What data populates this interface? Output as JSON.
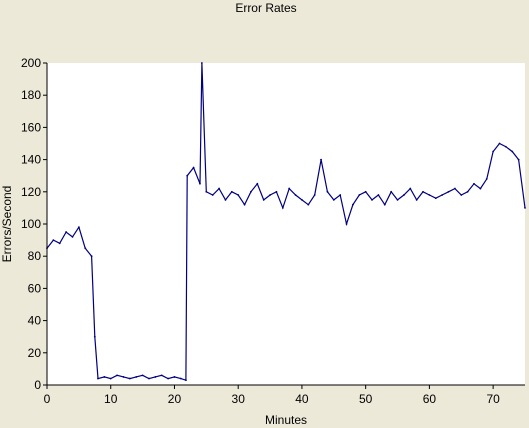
{
  "chart_data": {
    "type": "line",
    "title": "Error Rates",
    "xlabel": "Minutes",
    "ylabel": "Errors/Second",
    "xlim": [
      0,
      75
    ],
    "ylim": [
      0,
      200
    ],
    "x_ticks": [
      0,
      10,
      20,
      30,
      40,
      50,
      60,
      70
    ],
    "y_ticks": [
      0,
      20,
      40,
      60,
      80,
      100,
      120,
      140,
      160,
      180,
      200
    ],
    "grid": false,
    "legend": "none",
    "colors": {
      "background": "#ECE9D8",
      "plot_background": "#FFFFFF",
      "series": "#000080"
    },
    "series": [
      {
        "x": [
          0,
          1,
          2,
          3,
          4,
          5,
          6,
          7,
          7.5,
          8,
          9,
          10,
          11,
          12,
          13,
          14,
          15,
          16,
          17,
          18,
          19,
          20,
          21,
          21.8,
          22,
          23,
          24,
          24.3,
          25,
          26,
          27,
          28,
          29,
          30,
          31,
          32,
          33,
          34,
          35,
          36,
          37,
          38,
          39,
          40,
          41,
          42,
          43,
          44,
          45,
          46,
          47,
          48,
          49,
          50,
          51,
          52,
          53,
          54,
          55,
          56,
          57,
          58,
          59,
          60,
          61,
          62,
          63,
          64,
          65,
          66,
          67,
          68,
          69,
          70,
          71,
          72,
          73,
          74,
          75
        ],
        "y": [
          85,
          90,
          88,
          95,
          92,
          98,
          85,
          80,
          30,
          4,
          5,
          4,
          6,
          5,
          4,
          5,
          6,
          4,
          5,
          6,
          4,
          5,
          4,
          3,
          130,
          135,
          125,
          200,
          120,
          118,
          122,
          115,
          120,
          118,
          112,
          120,
          125,
          115,
          118,
          120,
          110,
          122,
          118,
          115,
          112,
          118,
          140,
          120,
          115,
          118,
          100,
          112,
          118,
          120,
          115,
          118,
          112,
          120,
          115,
          118,
          122,
          115,
          120,
          118,
          116,
          118,
          120,
          122,
          118,
          120,
          125,
          122,
          128,
          145,
          150,
          148,
          145,
          140,
          110
        ]
      }
    ]
  }
}
